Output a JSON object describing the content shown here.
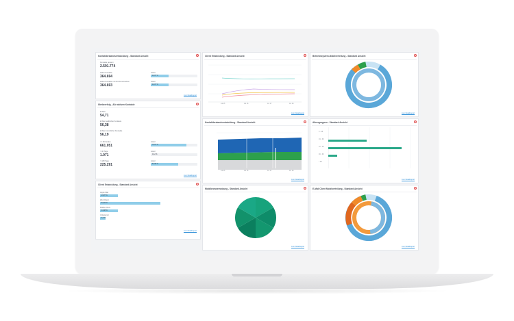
{
  "panels": {
    "p1": {
      "title": "Kontaktbestandsentwicklung - Standard Ansicht",
      "rows": [
        {
          "label": "Kontakte gesamt",
          "value": "2.591.774"
        },
        {
          "label": "aktive Kontakte",
          "value": "364.694",
          "bar_label": "Anteil",
          "pct": "14,07 %",
          "pct_value": 14.07
        },
        {
          "label": "aktive Kontakte mit DOI Kennzeichen",
          "value": "364.693",
          "bar_label": "Anteil",
          "pct": "14,07 %",
          "pct_value": 14.07
        }
      ],
      "link": "zum Detailreport"
    },
    "p2": {
      "title": "Werbeerfolg - Alle aktiven Kontakte",
      "rows": [
        {
          "label": "Ø Alter",
          "value": "54,71"
        },
        {
          "label": "Ø Alter weiblicher Kontakte",
          "value": "56,38"
        },
        {
          "label": "Ø Alter männlicher Kontakte",
          "value": "56,19"
        }
      ],
      "bars": [
        {
          "label": "<= Ø Kunden",
          "value": "661.051",
          "bar_label": "Anteil",
          "pct": "72,07 %",
          "pct_value": 72.07
        },
        {
          "label": "> 90 Tage",
          "value": "1.071",
          "bar_label": "Anteil",
          "pct": "0,12 %",
          "pct_value": 0.12
        },
        {
          "label": "> 180 Tage",
          "value": "225.291",
          "bar_label": "Anteil",
          "pct": "61,96 %",
          "pct_value": 61.96
        }
      ],
      "link": "zum Detailreport"
    },
    "p3": {
      "title": "Client Entwicklung - Standard Ansicht",
      "rows": [
        {
          "label": "Apple Mail",
          "pct": "24,87 %",
          "pct_value": 24.87
        },
        {
          "label": "Web Client",
          "pct": "54,02 %",
          "pct_value": 54.02
        },
        {
          "label": "Mobile Client",
          "pct": "14,08 %",
          "pct_value": 14.08
        },
        {
          "label": "Unbekannt",
          "pct": "3,0 %",
          "pct_value": 3.0
        }
      ],
      "link": "zum Detailreport"
    },
    "p4": {
      "title": "Client Entwicklung - Standard Ansicht",
      "xticks": [
        "Jul 15",
        "Jul 16",
        "Jul 17",
        "Jul 18"
      ],
      "link": "zum Detailreport"
    },
    "p5": {
      "title": "Kontaktbestandsentwicklung - Standard Ansicht",
      "xticks": [
        "Jul 15",
        "Jul 16",
        "Jul 17",
        "Jul 18"
      ],
      "link": "zum Detailreport"
    },
    "p6": {
      "title": "Mobilbrowsernutzung - Standard Ansicht",
      "link": "zum Detailreport"
    },
    "p7": {
      "title": "Betriebssystem-Mobilverteilung - Standard Ansicht",
      "link": "zum Detailreport"
    },
    "p8": {
      "title": "Altersgruppen - Standard Ansicht",
      "yticks": [
        "0 - 18",
        "19 - 30",
        "31 - 45",
        "46 - 60",
        "> 60"
      ],
      "link": "zum Detailreport"
    },
    "p9": {
      "title": "E-Mail Client Mobilverteilung - Standard Ansicht",
      "link": "zum Detailreport"
    }
  },
  "colors": {
    "light_blue": "#8fcde9",
    "mid_blue": "#5aa7d8",
    "dark_blue": "#1f66b4",
    "green": "#2da04c",
    "teal": "#0f8c6e",
    "orange": "#f08a2a",
    "red_close": "#e05050",
    "link": "#2f8fd8"
  },
  "icons": {
    "close": "close-icon"
  },
  "close_glyph": "×"
}
